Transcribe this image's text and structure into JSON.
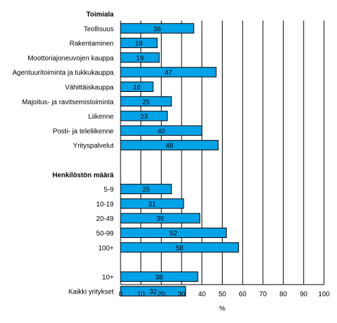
{
  "chart_data": {
    "type": "bar",
    "orientation": "horizontal",
    "xlabel": "%",
    "xlim": [
      0,
      100
    ],
    "xticks": [
      0,
      10,
      20,
      30,
      40,
      50,
      60,
      70,
      80,
      90,
      100
    ],
    "grid": "vertical",
    "bar_color": "#00a2e8",
    "groups": [
      {
        "title": "Toimiala",
        "items": [
          {
            "label": "Teollisuus",
            "value": 36
          },
          {
            "label": "Rakentaminen",
            "value": 18
          },
          {
            "label": "Moottoriajoneuvojen kauppa",
            "value": 19
          },
          {
            "label": "Agentuuritoiminta ja tukkukauppa",
            "value": 47
          },
          {
            "label": "Vähittäiskauppa",
            "value": 16
          },
          {
            "label": "Majoitus- ja ravitsemistoiminta",
            "value": 25
          },
          {
            "label": "Liikenne",
            "value": 23
          },
          {
            "label": "Posti- ja teleliikenne",
            "value": 40
          },
          {
            "label": "Yrityspalvelut",
            "value": 48
          }
        ]
      },
      {
        "title": "Henkilöstön määrä",
        "items": [
          {
            "label": "5-9",
            "value": 25
          },
          {
            "label": "10-19",
            "value": 31
          },
          {
            "label": "20-49",
            "value": 39
          },
          {
            "label": "50-99",
            "value": 52
          },
          {
            "label": "100+",
            "value": 58
          }
        ]
      },
      {
        "title": "",
        "items": [
          {
            "label": "10+",
            "value": 38
          },
          {
            "label": "Kaikki yritykset",
            "value": 32
          }
        ]
      }
    ]
  }
}
